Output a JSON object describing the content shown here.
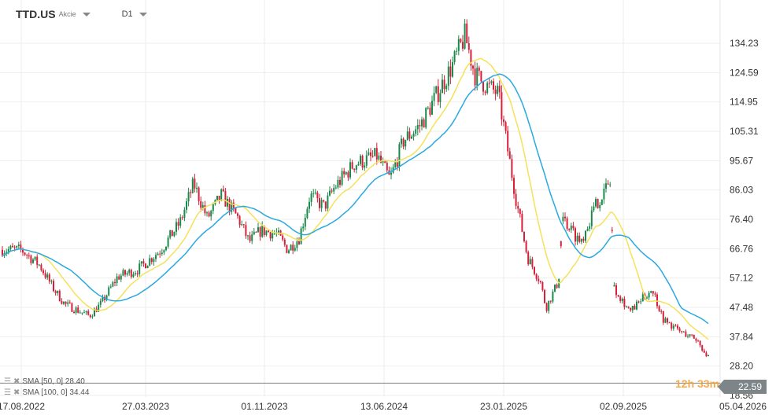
{
  "header": {
    "symbol": "TTD.US",
    "type": "Akcie",
    "timeframe": "D1"
  },
  "indicators": [
    {
      "label": "SMA [50, 0] 28.40",
      "color": "#f5e15a"
    },
    {
      "label": "SMA [100, 0] 34.44",
      "color": "#2aa9e0"
    }
  ],
  "last_price": "22.59",
  "countdown": "12h 33m",
  "colors": {
    "up": "#1a8a4a",
    "down": "#d6203a",
    "grid": "#eeeeee",
    "price_line": "#7d8588"
  },
  "chart_data": {
    "type": "candlestick",
    "y_ticks": [
      "134.23",
      "124.59",
      "114.95",
      "105.31",
      "95.67",
      "86.03",
      "76.40",
      "66.76",
      "57.12",
      "47.48",
      "37.84",
      "28.20",
      "18.56"
    ],
    "x_ticks": [
      "17.08.2022",
      "27.03.2023",
      "01.11.2023",
      "13.06.2024",
      "23.01.2025",
      "02.09.2025",
      "05.04.2026"
    ],
    "ylim": [
      18.56,
      134.23
    ],
    "grid": true,
    "approx_close_path": [
      [
        "2022-08-17",
        66.4
      ],
      [
        "2022-09-20",
        61.3
      ],
      [
        "2022-10-15",
        53.7
      ],
      [
        "2022-11-05",
        48.5
      ],
      [
        "2022-12-20",
        44.7
      ],
      [
        "2023-01-10",
        48.5
      ],
      [
        "2023-02-10",
        57.5
      ],
      [
        "2023-03-20",
        60
      ],
      [
        "2023-05-01",
        66.4
      ],
      [
        "2023-06-05",
        75.4
      ],
      [
        "2023-06-30",
        88.2
      ],
      [
        "2023-07-25",
        76.7
      ],
      [
        "2023-08-20",
        84.3
      ],
      [
        "2023-09-20",
        76.7
      ],
      [
        "2023-10-10",
        69
      ],
      [
        "2023-11-01",
        72.8
      ],
      [
        "2023-11-30",
        71.6
      ],
      [
        "2023-12-20",
        66.4
      ],
      [
        "2024-01-10",
        70.3
      ],
      [
        "2024-01-30",
        84.3
      ],
      [
        "2024-02-25",
        80.5
      ],
      [
        "2024-03-15",
        86.9
      ],
      [
        "2024-04-20",
        94.6
      ],
      [
        "2024-06-01",
        97.2
      ],
      [
        "2024-06-25",
        89.5
      ],
      [
        "2024-07-20",
        102.3
      ],
      [
        "2024-08-20",
        107.4
      ],
      [
        "2024-09-20",
        117.6
      ],
      [
        "2024-10-20",
        127.8
      ],
      [
        "2024-11-10",
        136.8
      ],
      [
        "2024-11-28",
        124
      ],
      [
        "2024-12-20",
        120.2
      ],
      [
        "2025-01-10",
        117.6
      ],
      [
        "2025-02-13",
        81.8
      ],
      [
        "2025-03-05",
        63.9
      ],
      [
        "2025-03-28",
        56.2
      ],
      [
        "2025-04-08",
        47.3
      ],
      [
        "2025-05-01",
        56.2
      ],
      [
        "2025-05-09",
        76.7
      ],
      [
        "2025-06-10",
        69
      ],
      [
        "2025-07-10",
        81.8
      ],
      [
        "2025-08-07",
        89.5
      ],
      [
        "2025-08-08",
        54.9
      ],
      [
        "2025-09-10",
        46
      ],
      [
        "2025-10-20",
        53.7
      ],
      [
        "2025-11-10",
        43.4
      ],
      [
        "2025-12-10",
        39.6
      ],
      [
        "2026-01-10",
        37
      ],
      [
        "2026-02-10",
        28.1
      ],
      [
        "2026-03-01",
        23
      ],
      [
        "2026-03-15",
        28.1
      ],
      [
        "2026-03-27",
        22.59
      ]
    ]
  }
}
